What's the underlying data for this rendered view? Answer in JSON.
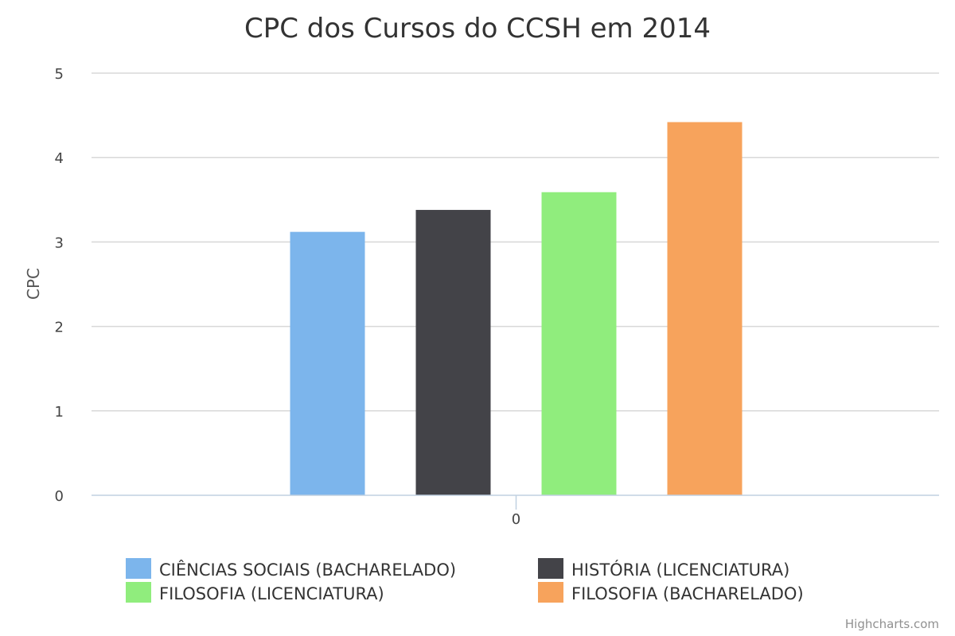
{
  "chart_data": {
    "type": "bar",
    "title": "CPC dos Cursos do CCSH em 2014",
    "xlabel": "",
    "ylabel": "CPC",
    "categories": [
      "0"
    ],
    "ylim": [
      0,
      5
    ],
    "yticks": [
      0,
      1,
      2,
      3,
      4,
      5
    ],
    "grid": true,
    "legend_placement": "bottom",
    "series": [
      {
        "name": "CIÊNCIAS SOCIAIS (BACHARELADO)",
        "values": [
          3.12
        ],
        "color": "#7cb5ec"
      },
      {
        "name": "HISTÓRIA (LICENCIATURA)",
        "values": [
          3.38
        ],
        "color": "#434348"
      },
      {
        "name": "FILOSOFIA (LICENCIATURA)",
        "values": [
          3.59
        ],
        "color": "#90ed7d"
      },
      {
        "name": "FILOSOFIA (BACHARELADO)",
        "values": [
          4.42
        ],
        "color": "#f7a35c"
      }
    ]
  },
  "credits": "Highcharts.com"
}
